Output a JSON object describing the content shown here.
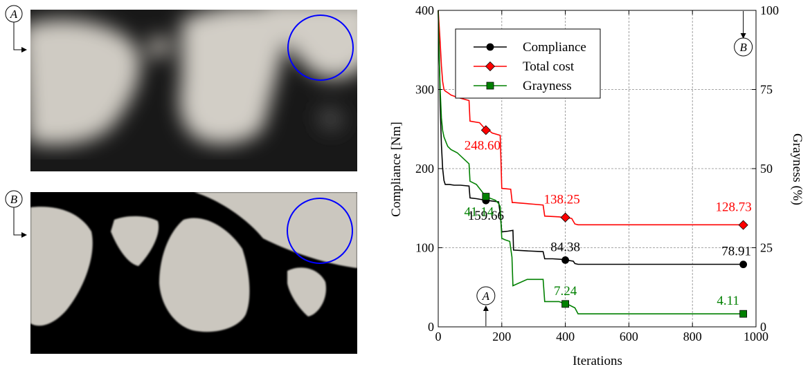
{
  "images": {
    "top": {
      "tag": "A"
    },
    "bottom": {
      "tag": "B"
    }
  },
  "chart_data": {
    "type": "line",
    "xlabel": "Iterations",
    "ylabel": "Compliance [Nm]",
    "y2label": "Grayness (%)",
    "xlim": [
      0,
      1000
    ],
    "ylim": [
      0,
      400
    ],
    "y2lim": [
      0,
      100
    ],
    "xticks": [
      "0",
      "200",
      "400",
      "600",
      "800",
      "1000"
    ],
    "yticks": [
      "0",
      "100",
      "200",
      "300",
      "400"
    ],
    "y2ticks": [
      "0",
      "25",
      "50",
      "75",
      "100"
    ],
    "grid": true,
    "legend_position": "top-left",
    "series": [
      {
        "name": "Compliance",
        "color": "#000000",
        "marker": "circle",
        "axis": "left",
        "x": [
          0,
          3,
          6,
          10,
          14,
          18,
          22,
          26,
          30,
          35,
          50,
          70,
          97,
          100,
          120,
          150,
          190,
          195,
          200,
          220,
          235,
          237,
          280,
          330,
          335,
          360,
          400,
          410,
          425,
          430,
          440,
          600,
          800,
          960
        ],
        "y": [
          400,
          350,
          280,
          230,
          200,
          185,
          180,
          180,
          180,
          180,
          179,
          179,
          178,
          163,
          162,
          160,
          158,
          143,
          120,
          121,
          122,
          97,
          96,
          95,
          86,
          86,
          85,
          84,
          83,
          80,
          79,
          79,
          79,
          79
        ],
        "labeled_points": [
          {
            "x": 150,
            "y": 159.66,
            "label": "159.66"
          },
          {
            "x": 400,
            "y": 84.38,
            "label": "84.38"
          },
          {
            "x": 960,
            "y": 78.91,
            "label": "78.91"
          }
        ]
      },
      {
        "name": "Total cost",
        "color": "#ff0000",
        "marker": "diamond",
        "axis": "left",
        "x": [
          0,
          3,
          6,
          10,
          14,
          18,
          22,
          26,
          30,
          40,
          60,
          97,
          100,
          130,
          150,
          160,
          170,
          195,
          200,
          228,
          233,
          240,
          300,
          330,
          335,
          380,
          400,
          420,
          430,
          440,
          600,
          800,
          960
        ],
        "y": [
          400,
          380,
          360,
          330,
          310,
          300,
          298,
          297,
          296,
          293,
          290,
          286,
          260,
          258,
          249,
          248,
          245,
          242,
          175,
          174,
          157,
          157,
          155,
          154,
          140,
          139,
          138,
          137,
          130,
          129,
          129,
          129,
          129
        ],
        "labeled_points": [
          {
            "x": 150,
            "y": 248.6,
            "label": "248.60"
          },
          {
            "x": 400,
            "y": 138.25,
            "label": "138.25"
          },
          {
            "x": 960,
            "y": 128.73,
            "label": "128.73"
          }
        ]
      },
      {
        "name": "Grayness",
        "color": "#008000",
        "marker": "square",
        "axis": "right",
        "x": [
          0,
          3,
          6,
          10,
          14,
          18,
          22,
          26,
          30,
          40,
          60,
          97,
          100,
          120,
          150,
          180,
          190,
          195,
          200,
          210,
          225,
          232,
          235,
          280,
          330,
          335,
          380,
          400,
          410,
          430,
          440,
          600,
          800,
          960
        ],
        "y": [
          100,
          85,
          75,
          66,
          62,
          60,
          59,
          58,
          57,
          56,
          55,
          51.5,
          46,
          45,
          41.14,
          40,
          39,
          38,
          28,
          27.5,
          27,
          22,
          13,
          15,
          15,
          8,
          8,
          7.24,
          7,
          6,
          4.11,
          4.11,
          4.11,
          4.11
        ],
        "labeled_points": [
          {
            "x": 150,
            "y": 41.14,
            "label": "41.14"
          },
          {
            "x": 400,
            "y": 7.24,
            "label": "7.24"
          },
          {
            "x": 960,
            "y": 4.11,
            "label": "4.11"
          }
        ]
      }
    ],
    "annotations": [
      {
        "text": "A",
        "x": 150,
        "marker": "circled-letter-arrow-up",
        "position": "bottom"
      },
      {
        "text": "B",
        "x": 960,
        "marker": "circled-letter-arrow-down",
        "position": "top"
      }
    ]
  }
}
